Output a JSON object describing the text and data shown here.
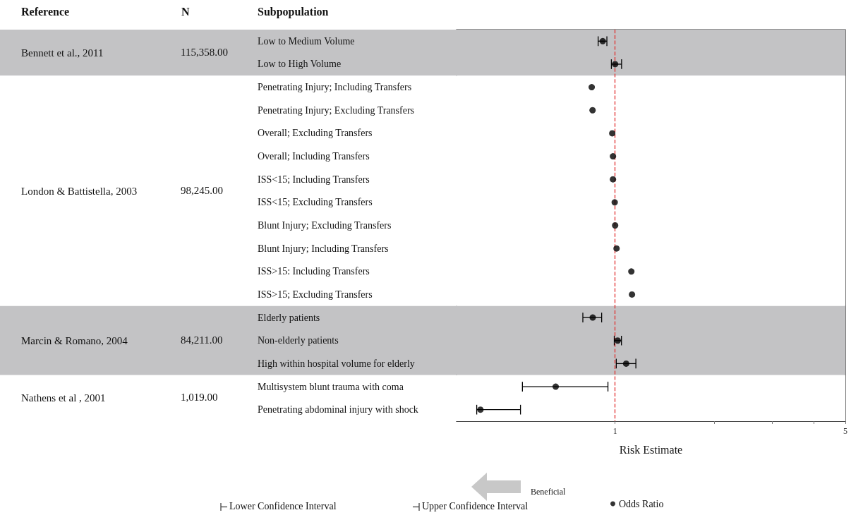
{
  "chart_data": {
    "type": "scatter",
    "xlabel": "Risk Estimate",
    "categories": [
      "Low to Medium Volume",
      "Low to High Volume",
      "Penetrating Injury; Including Transfers",
      "Penetrating Injury; Excluding Transfers",
      "Overall; Excluding Transfers",
      "Overall; Including Transfers",
      "ISS<15; Including Transfers",
      "ISS<15; Excluding Transfers",
      "Blunt Injury; Excluding Transfers",
      "Blunt Injury; Including Transfers",
      "ISS>15: Including Transfers",
      "ISS>15; Excluding Transfers",
      "Elderly patients",
      "Non-elderly patients",
      "High within hospital volume for elderly",
      "Multisystem blunt trauma with coma",
      "Penetrating abdominal injury with shock"
    ],
    "series": [
      {
        "name": "Odds Ratio",
        "color": "#000000",
        "values": [
          0.917,
          1.0,
          0.849,
          0.854,
          0.98,
          0.985,
          0.985,
          0.997,
          1.0,
          1.01,
          1.12,
          1.125,
          0.855,
          1.018,
          1.08,
          0.66,
          0.39
        ],
        "errors": [
          [
            0.888,
            0.944
          ],
          [
            0.974,
            1.046
          ],
          null,
          null,
          null,
          null,
          null,
          null,
          null,
          null,
          null,
          null,
          [
            0.798,
            0.91
          ],
          [
            0.994,
            1.045
          ],
          [
            1.008,
            1.156
          ],
          [
            0.523,
            0.951
          ],
          [
            0.38,
            0.516
          ]
        ]
      }
    ],
    "log": "x",
    "xlim": [
      0.33,
      5
    ],
    "xticks": [
      1,
      {
        "value": 2,
        "label": null
      },
      {
        "value": 3,
        "label": null
      },
      {
        "value": 4,
        "label": null
      },
      5
    ],
    "grid": false,
    "marker": "circle",
    "legend": "bottom",
    "orientation": "horizontal",
    "ref_lines": [
      {
        "axis": "x",
        "value": 1,
        "color": "#e03030",
        "line_style": "dashed"
      }
    ],
    "bands": [
      {
        "axis": "y",
        "from": "Low to Medium Volume",
        "to": "Low to High Volume",
        "label": "Bennett et al., 2011",
        "color": "#c3c3c5"
      },
      {
        "axis": "y",
        "from": "Penetrating Injury; Including Transfers",
        "to": "ISS>15; Excluding Transfers",
        "label": "London & Battistella, 2003",
        "color": "#ffffff"
      },
      {
        "axis": "y",
        "from": "Elderly patients",
        "to": "High within hospital volume for elderly",
        "label": "Marcin & Romano, 2004",
        "color": "#c3c3c5"
      },
      {
        "axis": "y",
        "from": "Multisystem blunt trauma with coma",
        "to": "Penetrating abdominal injury with shock",
        "label": "Nathens et al , 2001",
        "color": "#ffffff"
      }
    ],
    "annotations": [
      "Reference",
      "N",
      "Subpopulation",
      "115,358.00",
      "98,245.00",
      "84,211.00",
      "1,019.00",
      "Beneficial",
      "Lower Confidence Interval",
      "Upper Confidence Interval"
    ]
  }
}
